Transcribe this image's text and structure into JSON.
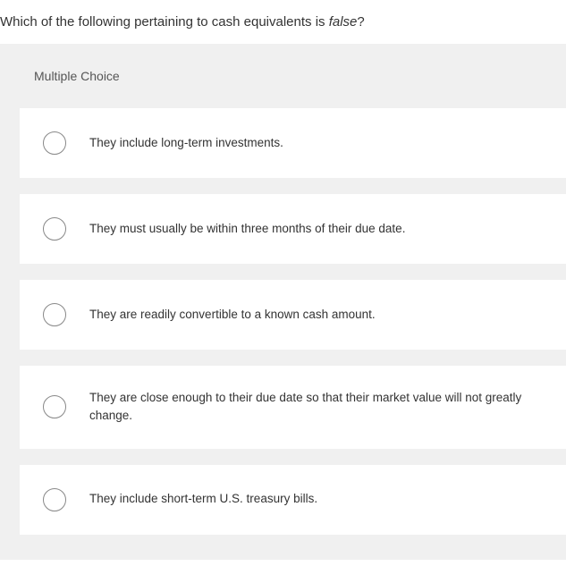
{
  "question": {
    "prefix": "Which of the following pertaining to cash equivalents is ",
    "italic": "false",
    "suffix": "?"
  },
  "section_label": "Multiple Choice",
  "options": [
    {
      "text": "They include long-term investments."
    },
    {
      "text": "They must usually be within three months of their due date."
    },
    {
      "text": "They are readily convertible to a known cash amount."
    },
    {
      "text": "They are close enough to their due date so that their market value will not greatly change."
    },
    {
      "text": "They include short-term U.S. treasury bills."
    }
  ],
  "colors": {
    "background": "#ffffff",
    "section_bg": "#f0f0f0",
    "text_primary": "#333333",
    "text_secondary": "#555555",
    "radio_border": "#888888"
  }
}
